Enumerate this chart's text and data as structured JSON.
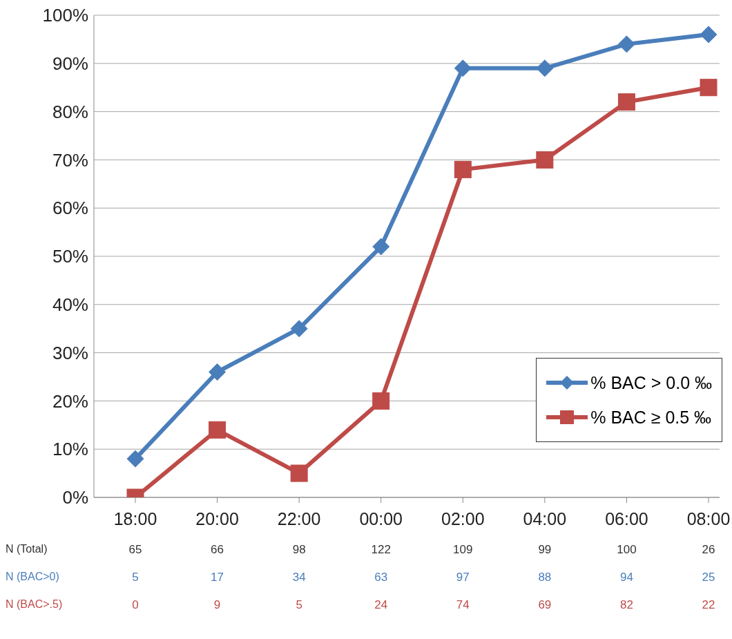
{
  "chart_data": {
    "type": "line",
    "categories": [
      "18:00",
      "20:00",
      "22:00",
      "00:00",
      "02:00",
      "04:00",
      "06:00",
      "08:00"
    ],
    "series": [
      {
        "name": "% BAC > 0.0 ‰",
        "color": "#4a7ebb",
        "marker": "diamond",
        "values": [
          8,
          26,
          35,
          52,
          89,
          89,
          94,
          96
        ]
      },
      {
        "name": "% BAC ≥ 0.5 ‰",
        "color": "#be4b48",
        "marker": "square",
        "values": [
          0,
          14,
          5,
          20,
          68,
          70,
          82,
          85
        ]
      }
    ],
    "ylim": [
      0,
      100
    ],
    "yticks": [
      {
        "value": 0,
        "label": "0%"
      },
      {
        "value": 10,
        "label": "10%"
      },
      {
        "value": 20,
        "label": "20%"
      },
      {
        "value": 30,
        "label": "30%"
      },
      {
        "value": 40,
        "label": "40%"
      },
      {
        "value": 50,
        "label": "50%"
      },
      {
        "value": 60,
        "label": "60%"
      },
      {
        "value": 70,
        "label": "70%"
      },
      {
        "value": 80,
        "label": "80%"
      },
      {
        "value": 90,
        "label": "90%"
      },
      {
        "value": 100,
        "label": "100%"
      }
    ],
    "grid": "y",
    "legend": "bottom right",
    "line_style": "solid",
    "annotations": [
      "N (Total)",
      "65",
      "66",
      "98",
      "122",
      "109",
      "99",
      "100",
      "26",
      "N (BAC>0)",
      "5",
      "17",
      "34",
      "63",
      "97",
      "88",
      "94",
      "25",
      "N (BAC>.5)",
      "0",
      "9",
      "5",
      "24",
      "74",
      "69",
      "82",
      "22"
    ]
  }
}
